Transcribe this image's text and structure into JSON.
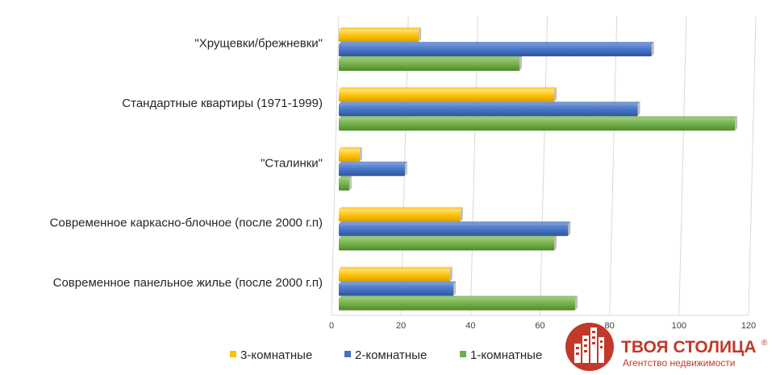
{
  "chart_data": {
    "type": "bar",
    "orientation": "horizontal",
    "categories": [
      "\"Хрущевки/брежневки\"",
      "Стандартные квартиры (1971-1999)",
      "\"Сталинки\"",
      "Современное каркасно-блочное (после 2000 г.п)",
      "Современное панельное жилье (после 2000 г.п)"
    ],
    "series": [
      {
        "name": "3-комнатные",
        "color": "#ffc000",
        "values": [
          23,
          62,
          6,
          35,
          32
        ]
      },
      {
        "name": "2-комнатные",
        "color": "#4472c4",
        "values": [
          90,
          86,
          19,
          66,
          33
        ]
      },
      {
        "name": "1-комнатные",
        "color": "#70ad47",
        "values": [
          52,
          114,
          3,
          62,
          68
        ]
      }
    ],
    "xlim": [
      0,
      120
    ],
    "xticks": [
      0,
      20,
      40,
      60,
      80,
      100,
      120
    ],
    "grid": true,
    "legend_position": "bottom",
    "title": "",
    "xlabel": "",
    "ylabel": ""
  },
  "logo": {
    "title": "ТВОЯ СТОЛИЦА",
    "registered": "®",
    "subtitle": "Агентство недвижимости",
    "color": "#c0392b"
  }
}
